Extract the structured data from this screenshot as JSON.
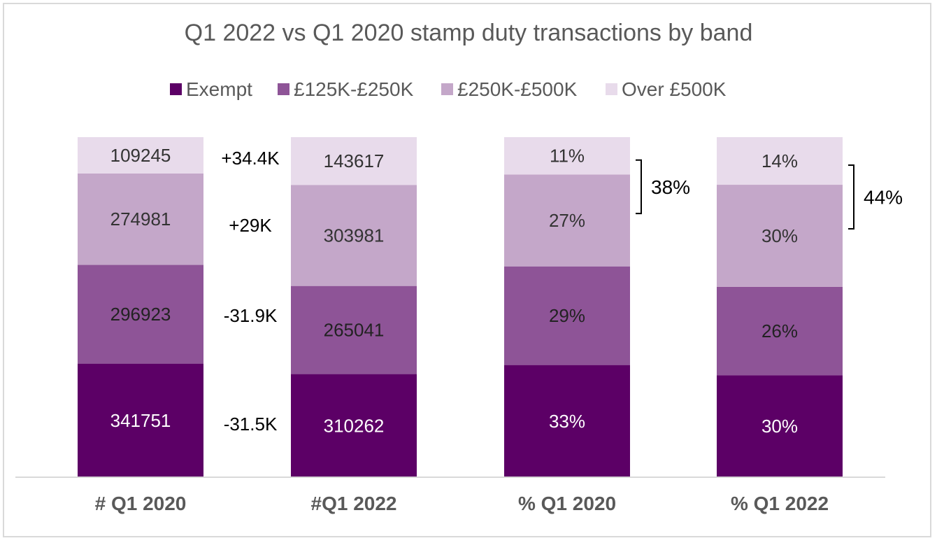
{
  "chart_data": {
    "type": "stacked-bar",
    "title": "Q1 2022 vs Q1 2020 stamp duty transactions by band",
    "categories": [
      "# Q1 2020",
      "#Q1 2022",
      "% Q1 2020",
      "% Q1 2022"
    ],
    "legend_position": "top",
    "series": [
      {
        "name": "Exempt",
        "color": "#5c0066",
        "label_color": "#ffffff",
        "values": [
          341751,
          310262,
          33,
          30
        ],
        "labels": [
          "341751",
          "310262",
          "33%",
          "30%"
        ]
      },
      {
        "name": "£125K-£250K",
        "color": "#8e5497",
        "label_color": "#222222",
        "values": [
          296923,
          265041,
          29,
          26
        ],
        "labels": [
          "296923",
          "265041",
          "29%",
          "26%"
        ]
      },
      {
        "name": "£250K-£500K",
        "color": "#c4a7c9",
        "label_color": "#333333",
        "values": [
          274981,
          303981,
          27,
          30
        ],
        "labels": [
          "274981",
          "303981",
          "27%",
          "30%"
        ]
      },
      {
        "name": "Over £500K",
        "color": "#e8dbeb",
        "label_color": "#333333",
        "values": [
          109245,
          143617,
          11,
          14
        ],
        "labels": [
          "109245",
          "143617",
          "11%",
          "14%"
        ]
      }
    ],
    "annotations": {
      "differences": [
        "+34.4K",
        "+29K",
        "-31.9K",
        "-31.5K"
      ],
      "bracket_totals": [
        "38%",
        "44%"
      ]
    }
  }
}
